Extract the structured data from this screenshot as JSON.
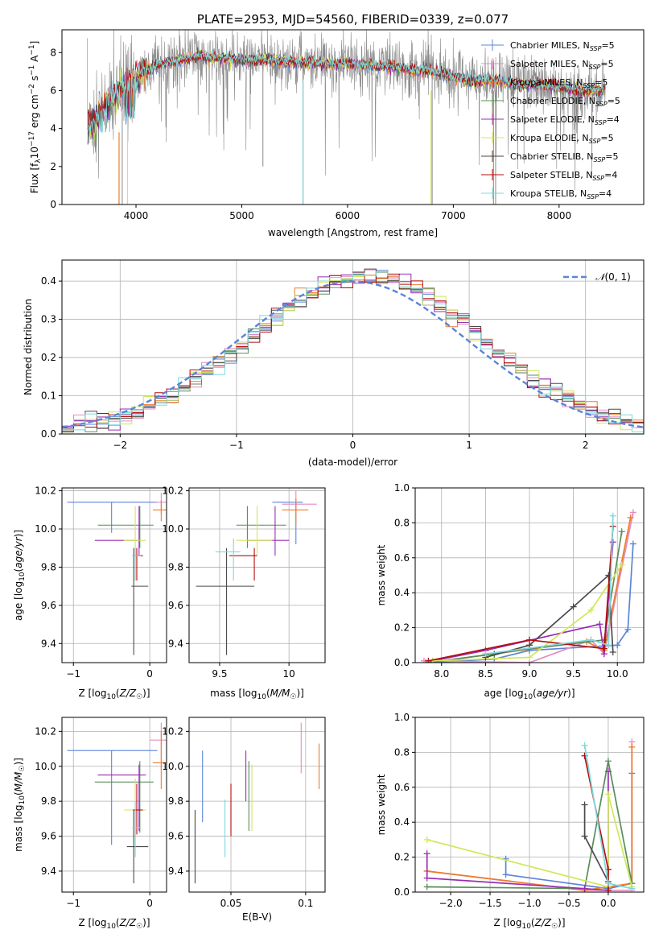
{
  "colors": {
    "Chabrier MILES": "#5b84d8",
    "Salpeter MILES": "#e48bbf",
    "Kroupa MILES": "#ee7d2a",
    "Chabrier ELODIE": "#5a8c5a",
    "Salpeter ELODIE": "#9a2db0",
    "Kroupa ELODIE": "#cfe85a",
    "Chabrier STELIB": "#4a4a4a",
    "Salpeter STELIB": "#b40d0d",
    "Kroupa STELIB": "#7fd8dc"
  },
  "chart_data": [
    {
      "id": "spectrum",
      "type": "line",
      "title": "PLATE=2953, MJD=54560, FIBERID=0339, z=0.077",
      "xlabel": "wavelength [Angstrom, rest frame]",
      "ylabel": "Flux [f_λ10^-17 erg cm^-2 s^-1 A^-1]",
      "xlim": [
        3300,
        8800
      ],
      "ylim": [
        0,
        9.2
      ],
      "xticks": [
        4000,
        5000,
        6000,
        7000,
        8000
      ],
      "yticks": [
        0,
        2,
        4,
        6,
        8
      ],
      "legend_position": "top-right",
      "legend": [
        {
          "name": "Chabrier MILES, N_SSP=5",
          "model": "Chabrier MILES"
        },
        {
          "name": "Salpeter MILES, N_SSP=5",
          "model": "Salpeter MILES"
        },
        {
          "name": "Kroupa MILES, N_SSP=5",
          "model": "Kroupa MILES"
        },
        {
          "name": "Chabrier ELODIE, N_SSP=5",
          "model": "Chabrier ELODIE"
        },
        {
          "name": "Salpeter ELODIE, N_SSP=4",
          "model": "Salpeter ELODIE"
        },
        {
          "name": "Kroupa ELODIE, N_SSP=5",
          "model": "Kroupa ELODIE"
        },
        {
          "name": "Chabrier STELIB, N_SSP=5",
          "model": "Chabrier STELIB"
        },
        {
          "name": "Salpeter STELIB, N_SSP=4",
          "model": "Salpeter STELIB"
        },
        {
          "name": "Kroupa STELIB, N_SSP=4",
          "model": "Kroupa STELIB"
        }
      ],
      "data_envelope": {
        "x": [
          3550,
          3650,
          3750,
          3850,
          3950,
          4050,
          4200,
          4400,
          4600,
          4800,
          5000,
          5200,
          5400,
          5600,
          5800,
          6000,
          6200,
          6400,
          6600,
          6800,
          7000,
          7200,
          7400,
          7600,
          7800,
          8000,
          8200,
          8400
        ],
        "y": [
          4.2,
          4.5,
          5.5,
          6.0,
          6.5,
          6.9,
          7.3,
          7.6,
          7.8,
          7.7,
          7.6,
          7.6,
          7.5,
          7.5,
          7.4,
          7.4,
          7.3,
          7.3,
          7.1,
          7.0,
          6.7,
          6.5,
          6.5,
          6.3,
          6.3,
          6.2,
          6.0,
          6.0
        ],
        "noise": 0.9
      }
    },
    {
      "id": "residuals",
      "type": "step",
      "xlabel": "(data-model)/error",
      "ylabel": "Normed distribution",
      "xlim": [
        -2.5,
        2.5
      ],
      "ylim": [
        0,
        0.455
      ],
      "xticks": [
        -2,
        -1,
        0,
        1,
        2
      ],
      "yticks": [
        0.0,
        0.1,
        0.2,
        0.3,
        0.4
      ],
      "legend_position": "top-right",
      "legend": [
        {
          "name": "𝒩(0, 1)"
        }
      ],
      "gaussian": {
        "mean": 0,
        "sigma": 1
      }
    },
    {
      "id": "age-vs-Z",
      "type": "errorbar",
      "xlabel": "Z [log10(Z/Z☉)]",
      "ylabel": "age [log10(age/yr)]",
      "xlim": [
        -1.15,
        0.22
      ],
      "ylim": [
        9.3,
        10.215
      ],
      "xticks": [
        -1,
        0
      ],
      "yticks": [
        9.4,
        9.6,
        9.8,
        10.0,
        10.2
      ],
      "points": [
        {
          "model": "Chabrier MILES",
          "x": -0.5,
          "xlo": -1.08,
          "xhi": 0.1,
          "y": 10.14,
          "ylo": 9.98,
          "yhi": 10.14
        },
        {
          "model": "Salpeter MILES",
          "x": 0.15,
          "xlo": 0.07,
          "xhi": 0.22,
          "y": 10.14,
          "ylo": 10.08,
          "yhi": 10.19
        },
        {
          "model": "Kroupa MILES",
          "x": 0.15,
          "xlo": 0.04,
          "xhi": 0.22,
          "y": 10.1,
          "ylo": 10.04,
          "yhi": 10.15
        },
        {
          "model": "Chabrier ELODIE",
          "x": -0.13,
          "xlo": -0.68,
          "xhi": 0.05,
          "y": 10.02,
          "ylo": 9.9,
          "yhi": 10.12
        },
        {
          "model": "Salpeter ELODIE",
          "x": -0.14,
          "xlo": -0.72,
          "xhi": -0.12,
          "y": 9.94,
          "ylo": 9.86,
          "yhi": 10.12
        },
        {
          "model": "Kroupa ELODIE",
          "x": -0.19,
          "xlo": -0.34,
          "xhi": -0.05,
          "y": 9.94,
          "ylo": 9.86,
          "yhi": 10.12
        },
        {
          "model": "Chabrier STELIB",
          "x": -0.21,
          "xlo": -0.24,
          "xhi": -0.02,
          "y": 9.7,
          "ylo": 9.34,
          "yhi": 9.9
        },
        {
          "model": "Salpeter STELIB",
          "x": -0.17,
          "xlo": -0.22,
          "xhi": -0.09,
          "y": 9.86,
          "ylo": 9.73,
          "yhi": 9.9
        },
        {
          "model": "Kroupa STELIB",
          "x": -0.19,
          "xlo": -0.23,
          "xhi": -0.12,
          "y": 9.86,
          "ylo": 9.73,
          "yhi": 9.9
        }
      ]
    },
    {
      "id": "age-vs-mass",
      "type": "errorbar",
      "xlabel": "mass [log10(M/M☉)]",
      "ylabel": "",
      "xlim": [
        9.28,
        10.26
      ],
      "ylim": [
        9.3,
        10.215
      ],
      "xticks": [
        9.5,
        10.0
      ],
      "yticks": [
        9.4,
        9.6,
        9.8,
        10.0,
        10.2
      ],
      "points": [
        {
          "model": "Chabrier MILES",
          "x": 10.05,
          "xlo": 9.88,
          "xhi": 10.1,
          "y": 10.14,
          "ylo": 9.92,
          "yhi": 10.14
        },
        {
          "model": "Salpeter MILES",
          "x": 10.05,
          "xlo": 9.95,
          "xhi": 10.2,
          "y": 10.13,
          "ylo": 10.06,
          "yhi": 10.2
        },
        {
          "model": "Kroupa MILES",
          "x": 10.05,
          "xlo": 9.95,
          "xhi": 10.14,
          "y": 10.1,
          "ylo": 10.02,
          "yhi": 10.16
        },
        {
          "model": "Chabrier ELODIE",
          "x": 9.7,
          "xlo": 9.62,
          "xhi": 9.98,
          "y": 10.02,
          "ylo": 9.9,
          "yhi": 10.12
        },
        {
          "model": "Salpeter ELODIE",
          "x": 9.9,
          "xlo": 9.7,
          "xhi": 10.0,
          "y": 9.94,
          "ylo": 9.86,
          "yhi": 10.12
        },
        {
          "model": "Kroupa ELODIE",
          "x": 9.77,
          "xlo": 9.62,
          "xhi": 9.88,
          "y": 9.94,
          "ylo": 9.86,
          "yhi": 10.12
        },
        {
          "model": "Chabrier STELIB",
          "x": 9.55,
          "xlo": 9.33,
          "xhi": 9.75,
          "y": 9.7,
          "ylo": 9.34,
          "yhi": 9.9
        },
        {
          "model": "Salpeter STELIB",
          "x": 9.75,
          "xlo": 9.57,
          "xhi": 9.77,
          "y": 9.86,
          "ylo": 9.73,
          "yhi": 9.9
        },
        {
          "model": "Kroupa STELIB",
          "x": 9.6,
          "xlo": 9.47,
          "xhi": 9.65,
          "y": 9.88,
          "ylo": 9.73,
          "yhi": 9.95
        }
      ]
    },
    {
      "id": "weight-vs-age",
      "type": "line",
      "xlabel": "age [log10(age/yr)]",
      "ylabel": "mass weight",
      "xlim": [
        7.7,
        10.3
      ],
      "ylim": [
        0,
        1.0
      ],
      "xticks": [
        8.0,
        8.5,
        9.0,
        9.5,
        10.0
      ],
      "yticks": [
        0.0,
        0.2,
        0.4,
        0.6,
        0.8,
        1.0
      ],
      "series": [
        {
          "model": "Chabrier MILES",
          "x": [
            7.82,
            8.6,
            9.0,
            10.0,
            10.12,
            10.18
          ],
          "y": [
            0.0,
            0.02,
            0.07,
            0.1,
            0.19,
            0.68
          ]
        },
        {
          "model": "Salpeter MILES",
          "x": [
            7.8,
            9.0,
            9.7,
            9.85,
            10.18
          ],
          "y": [
            0.01,
            0.0,
            0.13,
            0.05,
            0.86
          ]
        },
        {
          "model": "Kroupa MILES",
          "x": [
            7.85,
            8.6,
            9.65,
            9.85,
            10.15
          ],
          "y": [
            0.0,
            0.05,
            0.12,
            0.07,
            0.83
          ]
        },
        {
          "model": "Chabrier ELODIE",
          "x": [
            7.85,
            8.6,
            9.0,
            9.85,
            10.05
          ],
          "y": [
            0.0,
            0.05,
            0.08,
            0.13,
            0.75
          ]
        },
        {
          "model": "Salpeter ELODIE",
          "x": [
            7.9,
            8.5,
            9.8,
            9.85,
            9.95
          ],
          "y": [
            0.01,
            0.07,
            0.22,
            0.05,
            0.69
          ]
        },
        {
          "model": "Kroupa ELODIE",
          "x": [
            7.9,
            9.0,
            9.7,
            10.05
          ],
          "y": [
            0.01,
            0.03,
            0.3,
            0.56
          ]
        },
        {
          "model": "Chabrier STELIB",
          "x": [
            8.5,
            9.0,
            9.5,
            9.9,
            9.95
          ],
          "y": [
            0.03,
            0.1,
            0.32,
            0.5,
            0.06
          ]
        },
        {
          "model": "Salpeter STELIB",
          "x": [
            7.85,
            9.0,
            9.85,
            9.95
          ],
          "y": [
            0.01,
            0.13,
            0.08,
            0.78
          ]
        },
        {
          "model": "Kroupa STELIB",
          "x": [
            8.5,
            9.7,
            9.9,
            9.95
          ],
          "y": [
            0.05,
            0.13,
            0.1,
            0.84
          ]
        }
      ]
    },
    {
      "id": "mass-vs-Z",
      "type": "errorbar",
      "xlabel": "Z [log10(Z/Z☉)]",
      "ylabel": "mass [log10(M/M☉)]",
      "xlim": [
        -1.15,
        0.22
      ],
      "ylim": [
        9.28,
        10.28
      ],
      "xticks": [
        -1,
        0
      ],
      "yticks": [
        9.4,
        9.6,
        9.8,
        10.0,
        10.2
      ],
      "points": [
        {
          "model": "Chabrier MILES",
          "x": -0.5,
          "xlo": -1.08,
          "xhi": 0.1,
          "y": 10.09,
          "ylo": 9.55,
          "yhi": 10.09
        },
        {
          "model": "Salpeter MILES",
          "x": 0.15,
          "xlo": 0.0,
          "xhi": 0.22,
          "y": 10.15,
          "ylo": 9.98,
          "yhi": 10.25
        },
        {
          "model": "Kroupa MILES",
          "x": 0.15,
          "xlo": 0.04,
          "xhi": 0.22,
          "y": 10.02,
          "ylo": 9.87,
          "yhi": 10.2
        },
        {
          "model": "Chabrier ELODIE",
          "x": -0.13,
          "xlo": -0.72,
          "xhi": 0.05,
          "y": 9.91,
          "ylo": 9.62,
          "yhi": 10.03
        },
        {
          "model": "Salpeter ELODIE",
          "x": -0.14,
          "xlo": -0.68,
          "xhi": -0.05,
          "y": 9.95,
          "ylo": 9.63,
          "yhi": 10.01
        },
        {
          "model": "Kroupa ELODIE",
          "x": -0.19,
          "xlo": -0.34,
          "xhi": -0.05,
          "y": 9.75,
          "ylo": 9.6,
          "yhi": 9.93
        },
        {
          "model": "Chabrier STELIB",
          "x": -0.21,
          "xlo": -0.3,
          "xhi": -0.02,
          "y": 9.54,
          "ylo": 9.33,
          "yhi": 9.75
        },
        {
          "model": "Salpeter STELIB",
          "x": -0.17,
          "xlo": -0.22,
          "xhi": -0.09,
          "y": 9.75,
          "ylo": 9.61,
          "yhi": 9.9
        },
        {
          "model": "Kroupa STELIB",
          "x": -0.19,
          "xlo": -0.23,
          "xhi": -0.12,
          "y": 9.65,
          "ylo": 9.48,
          "yhi": 9.8
        }
      ]
    },
    {
      "id": "mass-vs-ebv",
      "type": "errorbar",
      "xlabel": "E(B-V)",
      "ylabel": "",
      "xlim": [
        0.022,
        0.113
      ],
      "ylim": [
        9.28,
        10.28
      ],
      "xticks": [
        0.05,
        0.1
      ],
      "yticks": [
        9.4,
        9.6,
        9.8,
        10.0,
        10.2
      ],
      "points": [
        {
          "model": "Chabrier MILES",
          "x": 0.031,
          "ylo": 9.68,
          "yhi": 10.09
        },
        {
          "model": "Salpeter MILES",
          "x": 0.097,
          "ylo": 9.96,
          "yhi": 10.25
        },
        {
          "model": "Kroupa MILES",
          "x": 0.109,
          "ylo": 9.87,
          "yhi": 10.13
        },
        {
          "model": "Chabrier ELODIE",
          "x": 0.062,
          "ylo": 9.63,
          "yhi": 10.03
        },
        {
          "model": "Salpeter ELODIE",
          "x": 0.06,
          "ylo": 9.8,
          "yhi": 10.09
        },
        {
          "model": "Kroupa ELODIE",
          "x": 0.064,
          "ylo": 9.63,
          "yhi": 10.01
        },
        {
          "model": "Chabrier STELIB",
          "x": 0.026,
          "ylo": 9.33,
          "yhi": 9.75
        },
        {
          "model": "Salpeter STELIB",
          "x": 0.05,
          "ylo": 9.6,
          "yhi": 9.9
        },
        {
          "model": "Kroupa STELIB",
          "x": 0.046,
          "ylo": 9.48,
          "yhi": 9.81
        }
      ]
    },
    {
      "id": "weight-vs-Z",
      "type": "line",
      "xlabel": "Z [log10(Z/Z☉)]",
      "ylabel": "mass weight",
      "xlim": [
        -2.45,
        0.45
      ],
      "ylim": [
        0,
        1.0
      ],
      "xticks": [
        -2.0,
        -1.5,
        -1.0,
        -0.5,
        0.0
      ],
      "yticks": [
        0.0,
        0.2,
        0.4,
        0.6,
        0.8,
        1.0
      ],
      "series": [
        {
          "model": "Chabrier MILES",
          "x": [
            -1.3,
            -1.3,
            0.0,
            0.3,
            0.3
          ],
          "y": [
            0.19,
            0.1,
            0.02,
            0.05,
            0.68
          ]
        },
        {
          "model": "Salpeter MILES",
          "x": [
            -2.3,
            -0.3,
            0.3,
            0.3
          ],
          "y": [
            0.12,
            0.01,
            0.01,
            0.86
          ]
        },
        {
          "model": "Kroupa MILES",
          "x": [
            -2.3,
            -0.3,
            0.3,
            0.3
          ],
          "y": [
            0.12,
            0.01,
            0.05,
            0.83
          ]
        },
        {
          "model": "Chabrier ELODIE",
          "x": [
            -2.3,
            -0.3,
            0.0,
            0.3
          ],
          "y": [
            0.03,
            0.02,
            0.75,
            0.05
          ]
        },
        {
          "model": "Salpeter ELODIE",
          "x": [
            -2.3,
            -2.3,
            -0.3,
            0.0,
            0.0
          ],
          "y": [
            0.22,
            0.08,
            0.02,
            0.01,
            0.69
          ]
        },
        {
          "model": "Kroupa ELODIE",
          "x": [
            -2.3,
            0.0,
            0.0,
            0.3
          ],
          "y": [
            0.3,
            0.03,
            0.56,
            0.03
          ]
        },
        {
          "model": "Chabrier STELIB",
          "x": [
            -0.3,
            -0.3,
            0.0
          ],
          "y": [
            0.5,
            0.32,
            0.06
          ]
        },
        {
          "model": "Salpeter STELIB",
          "x": [
            -0.3,
            0.0,
            0.0
          ],
          "y": [
            0.78,
            0.13,
            0.01
          ]
        },
        {
          "model": "Kroupa STELIB",
          "x": [
            -0.3,
            0.0,
            0.3
          ],
          "y": [
            0.84,
            0.05,
            0.02
          ]
        }
      ]
    }
  ]
}
